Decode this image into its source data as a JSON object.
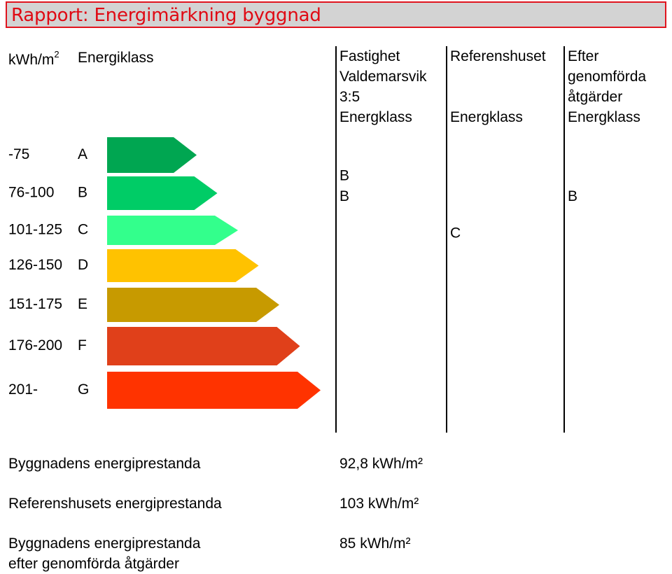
{
  "title": "Rapport: Energimärkning byggnad",
  "column_headers": {
    "unit_base": "kWh/m",
    "unit_exp": "2",
    "energy_class": "Energiklass",
    "property": [
      "Fastighet",
      "Valdemarsvik",
      "3:5",
      "Energklass"
    ],
    "reference": [
      "Referenshuset",
      "Energklass"
    ],
    "after": [
      "Efter",
      "genomförda",
      "åtgärder",
      "Energklass"
    ]
  },
  "chart_data": {
    "type": "bar",
    "categories": [
      "A",
      "B",
      "C",
      "D",
      "E",
      "F",
      "G"
    ],
    "ranges": [
      "-75",
      "76-100",
      "101-125",
      "126-150",
      "151-175",
      "176-200",
      "201-"
    ],
    "colors": [
      "#00a651",
      "#00cc66",
      "#33ff8c",
      "#ffc200",
      "#c79a00",
      "#e0401a",
      "#ff3300"
    ],
    "values": [
      1,
      2,
      3,
      4,
      5,
      6,
      7
    ],
    "markers": {
      "property": [
        {
          "text": "B",
          "position": 1.55
        },
        {
          "text": "B",
          "position": 2.1
        }
      ],
      "reference": [
        {
          "text": "C",
          "position": 3.1
        }
      ],
      "after": [
        {
          "text": "B",
          "position": 2.1
        }
      ]
    }
  },
  "summary": [
    {
      "label": [
        "Byggnadens energiprestanda"
      ],
      "value": "92,8 kWh/m²"
    },
    {
      "label": [
        "Referenshusets energiprestanda"
      ],
      "value": "103 kWh/m²"
    },
    {
      "label": [
        "Byggnadens energiprestanda",
        "efter genomförda åtgärder"
      ],
      "value": "85 kWh/m²"
    }
  ]
}
